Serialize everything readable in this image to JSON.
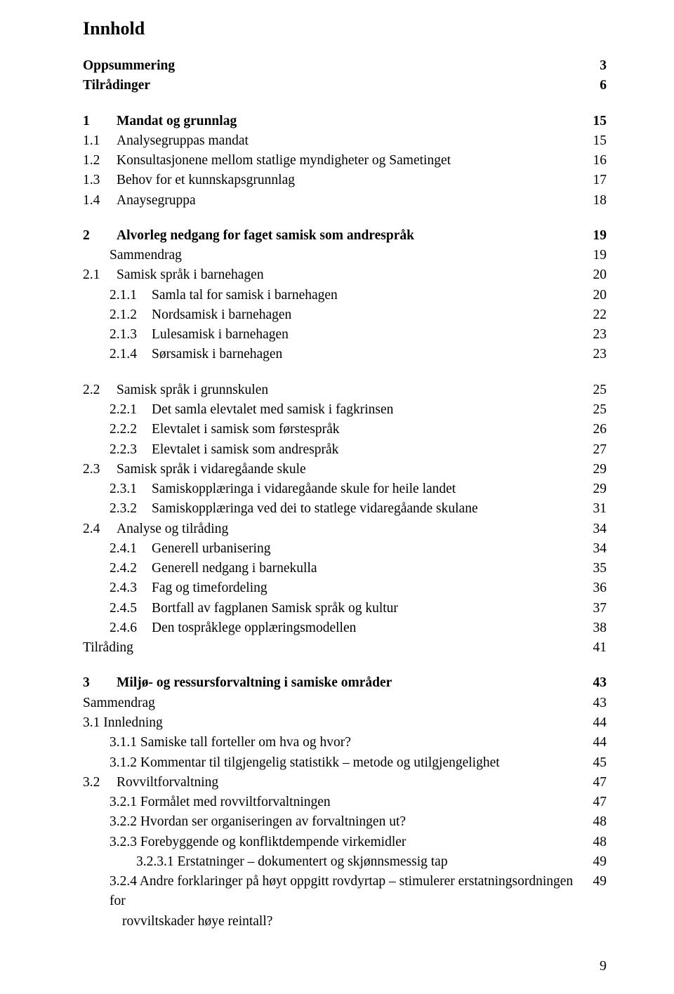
{
  "title": "Innhold",
  "page_number": "9",
  "groups": [
    {
      "rows": [
        {
          "label": "Oppsummering",
          "page": "3",
          "bold": true,
          "indent": 0
        },
        {
          "label": "Tilrådinger",
          "page": "6",
          "bold": true,
          "indent": 0
        }
      ]
    },
    {
      "rows": [
        {
          "num": "1",
          "label": "Mandat og grunnlag",
          "page": "15",
          "bold": true,
          "indent": 0,
          "num_w": "num-w1"
        },
        {
          "num": "1.1",
          "label": "Analysegruppas mandat",
          "page": "15",
          "indent": 0,
          "num_w": "num-w1"
        },
        {
          "num": "1.2",
          "label": "Konsultasjonene mellom statlige myndigheter og Sametinget",
          "page": "16",
          "indent": 0,
          "num_w": "num-w1"
        },
        {
          "num": "1.3",
          "label": "Behov for et kunnskapsgrunnlag",
          "page": "17",
          "indent": 0,
          "num_w": "num-w1"
        },
        {
          "num": "1.4",
          "label": "Anaysegruppa",
          "page": "18",
          "indent": 0,
          "num_w": "num-w1"
        }
      ]
    },
    {
      "rows": [
        {
          "num": "2",
          "label": "Alvorleg nedgang for faget samisk som andrespråk",
          "page": "19",
          "bold": true,
          "indent": 0,
          "num_w": "num-w1"
        },
        {
          "label": "Sammendrag",
          "page": "19",
          "indent": 1
        },
        {
          "num": "2.1",
          "label": "Samisk språk i barnehagen",
          "page": "20",
          "indent": 0,
          "num_w": "num-w1"
        },
        {
          "num": "2.1.1",
          "label": "Samla tal for samisk i barnehagen",
          "page": "20",
          "indent": 1,
          "num_w": "num-w3"
        },
        {
          "num": "2.1.2",
          "label": "Nordsamisk i barnehagen",
          "page": "22",
          "indent": 1,
          "num_w": "num-w3"
        },
        {
          "num": "2.1.3",
          "label": "Lulesamisk i barnehagen",
          "page": "23",
          "indent": 1,
          "num_w": "num-w3"
        },
        {
          "num": "2.1.4",
          "label": "Sørsamisk i barnehagen",
          "page": "23",
          "indent": 1,
          "num_w": "num-w3"
        }
      ]
    },
    {
      "rows": [
        {
          "num": "2.2",
          "label": "Samisk språk i grunnskulen",
          "page": "25",
          "indent": 0,
          "num_w": "num-w1"
        },
        {
          "num": "2.2.1",
          "label": "Det samla elevtalet med samisk i fagkrinsen",
          "page": "25",
          "indent": 1,
          "num_w": "num-w3"
        },
        {
          "num": "2.2.2",
          "label": "Elevtalet i samisk som førstespråk",
          "page": "26",
          "indent": 1,
          "num_w": "num-w3"
        },
        {
          "num": "2.2.3",
          "label": "Elevtalet i samisk som andrespråk",
          "page": "27",
          "indent": 1,
          "num_w": "num-w3"
        },
        {
          "num": "2.3",
          "label": "Samisk språk i vidaregåande skule",
          "page": "29",
          "indent": 0,
          "num_w": "num-w1"
        },
        {
          "num": "2.3.1",
          "label": "Samiskopplæringa i vidaregåande skule for heile landet",
          "page": "29",
          "indent": 1,
          "num_w": "num-w3"
        },
        {
          "num": "2.3.2",
          "label": "Samiskopplæringa ved dei to statlege vidaregåande skulane",
          "page": "31",
          "indent": 1,
          "num_w": "num-w3"
        },
        {
          "num": "2.4",
          "label": "Analyse og tilråding",
          "page": "34",
          "indent": 0,
          "num_w": "num-w1"
        },
        {
          "num": "2.4.1",
          "label": "Generell urbanisering",
          "page": "34",
          "indent": 1,
          "num_w": "num-w3"
        },
        {
          "num": "2.4.2",
          "label": "Generell nedgang i barnekulla",
          "page": "35",
          "indent": 1,
          "num_w": "num-w3"
        },
        {
          "num": "2.4.3",
          "label": "Fag og timefordeling",
          "page": "36",
          "indent": 1,
          "num_w": "num-w3"
        },
        {
          "num": "2.4.5",
          "label": "Bortfall av fagplanen Samisk språk og kultur",
          "page": "37",
          "indent": 1,
          "num_w": "num-w3"
        },
        {
          "num": "2.4.6",
          "label": "Den tospråklege opplæringsmodellen",
          "page": "38",
          "indent": 1,
          "num_w": "num-w3"
        },
        {
          "label": "Tilråding",
          "page": "41",
          "indent": 0
        }
      ]
    },
    {
      "rows": [
        {
          "num": "3",
          "label": "Miljø- og ressursforvaltning i samiske områder",
          "page": "43",
          "bold": true,
          "indent": 0,
          "num_w": "num-w1"
        },
        {
          "label": "Sammendrag",
          "page": "43",
          "indent": 0
        },
        {
          "label": "3.1 Innledning",
          "page": "44",
          "indent": 0
        },
        {
          "label": "3.1.1 Samiske tall forteller om hva og hvor?",
          "page": "44",
          "indent": 1
        },
        {
          "label": "3.1.2 Kommentar til tilgjengelig statistikk – metode og utilgjengelighet",
          "page": "45",
          "indent": 1
        },
        {
          "num": "3.2",
          "label": "Rovviltforvaltning",
          "page": "47",
          "indent": 0,
          "num_w": "num-w1"
        },
        {
          "label": "3.2.1 Formålet med rovviltforvaltningen",
          "page": "47",
          "indent": 1
        },
        {
          "label": "3.2.2 Hvordan ser organiseringen av forvaltningen ut?",
          "page": "48",
          "indent": 1
        },
        {
          "label": "3.2.3 Forebyggende og konfliktdempende virkemidler",
          "page": "48",
          "indent": 1
        },
        {
          "label": "3.2.3.1 Erstatninger – dokumentert og skjønnsmessig tap",
          "page": "49",
          "indent": 2
        },
        {
          "label": "3.2.4 Andre forklaringer på høyt oppgitt rovdyrtap – stimulerer erstatningsordningen for",
          "page": "49",
          "indent": 1
        },
        {
          "label": "rovviltskader høye reintall?",
          "page": "",
          "indent": 1,
          "extra_indent": true
        }
      ]
    }
  ]
}
